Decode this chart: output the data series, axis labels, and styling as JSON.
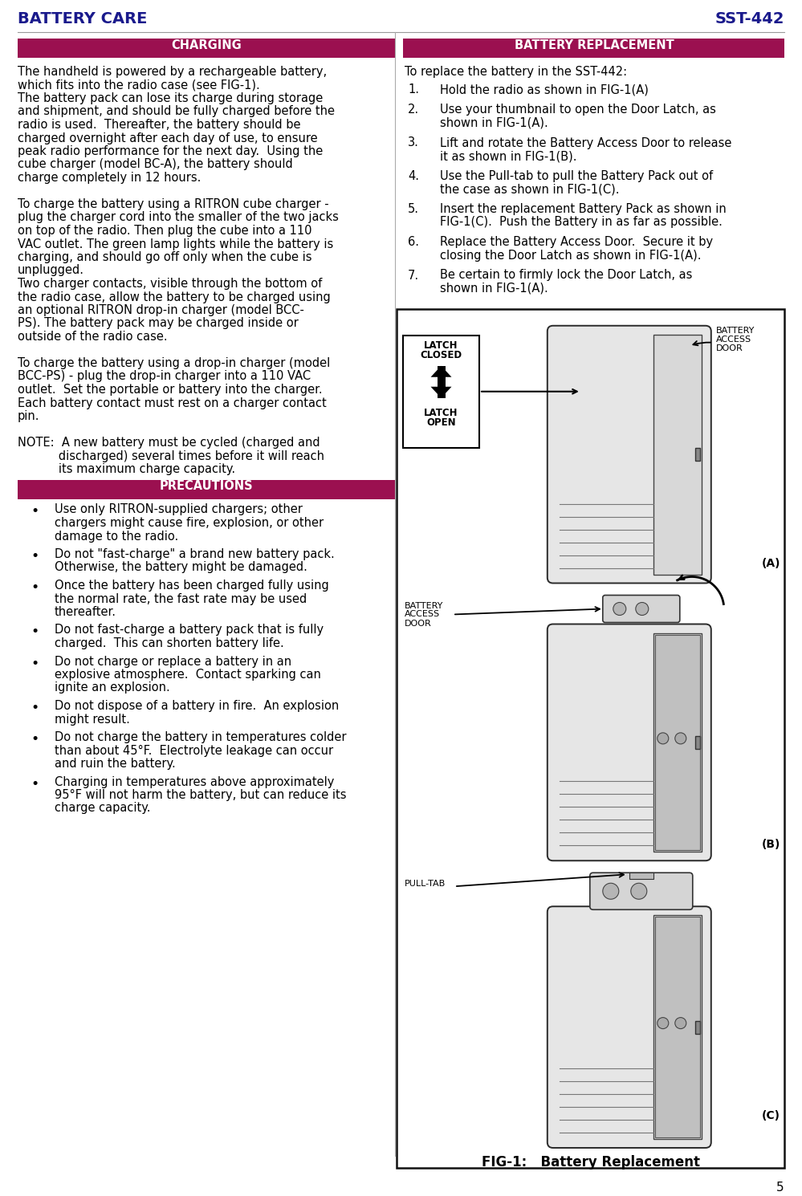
{
  "title_left": "BATTERY CARE",
  "title_right": "SST-442",
  "title_color": "#1a1a8c",
  "header_bg_color": "#9b1050",
  "header_text_color": "#ffffff",
  "charging_header": "CHARGING",
  "battery_replacement_header": "BATTERY REPLACEMENT",
  "precautions_header": "PRECAUTIONS",
  "page_number": "5",
  "bg": "#ffffff",
  "charging_lines": [
    "The handheld is powered by a rechargeable battery,",
    "which fits into the radio case (see FIG-1).",
    "The battery pack can lose its charge during storage",
    "and shipment, and should be fully charged before the",
    "radio is used.  Thereafter, the battery should be",
    "charged overnight after each day of use, to ensure",
    "peak radio performance for the next day.  Using the",
    "cube charger (model BC-A), the battery should",
    "charge completely in 12 hours.",
    "",
    "To charge the battery using a RITRON cube charger -",
    "plug the charger cord into the smaller of the two jacks",
    "on top of the radio. Then plug the cube into a 110",
    "VAC outlet. The green lamp lights while the battery is",
    "charging, and should go off only when the cube is",
    "unplugged.",
    "Two charger contacts, visible through the bottom of",
    "the radio case, allow the battery to be charged using",
    "an optional RITRON drop-in charger (model BCC-",
    "PS). The battery pack may be charged inside or",
    "outside of the radio case.",
    "",
    "To charge the battery using a drop-in charger (model",
    "BCC-PS) - plug the drop-in charger into a 110 VAC",
    "outlet.  Set the portable or battery into the charger.",
    "Each battery contact must rest on a charger contact",
    "pin.",
    "",
    "NOTE:  A new battery must be cycled (charged and",
    "           discharged) several times before it will reach",
    "           its maximum charge capacity."
  ],
  "precautions_bullets": [
    [
      "Use only RITRON-supplied chargers; other",
      "chargers might cause fire, explosion, or other",
      "damage to the radio."
    ],
    [
      "Do not \"fast-charge\" a brand new battery pack.",
      "Otherwise, the battery might be damaged."
    ],
    [
      "Once the battery has been charged fully using",
      "the normal rate, the fast rate may be used",
      "thereafter."
    ],
    [
      "Do not fast-charge a battery pack that is fully",
      "charged.  This can shorten battery life."
    ],
    [
      "Do not charge or replace a battery in an",
      "explosive atmosphere.  Contact sparking can",
      "ignite an explosion."
    ],
    [
      "Do not dispose of a battery in fire.  An explosion",
      "might result."
    ],
    [
      "Do not charge the battery in temperatures colder",
      "than about 45°F.  Electrolyte leakage can occur",
      "and ruin the battery."
    ],
    [
      "Charging in temperatures above approximately",
      "95°F will not harm the battery, but can reduce its",
      "charge capacity."
    ]
  ],
  "replacement_intro": "To replace the battery in the SST-442:",
  "replacement_steps": [
    [
      "Hold the radio as shown in FIG-1(A)"
    ],
    [
      "Use your thumbnail to open the Door Latch, as",
      "shown in FIG-1(A)."
    ],
    [
      "Lift and rotate the Battery Access Door to release",
      "it as shown in FIG-1(B)."
    ],
    [
      "Use the Pull-tab to pull the Battery Pack out of",
      "the case as shown in FIG-1(C)."
    ],
    [
      "Insert the replacement Battery Pack as shown in",
      "FIG-1(C).  Push the Battery in as far as possible."
    ],
    [
      "Replace the Battery Access Door.  Secure it by",
      "closing the Door Latch as shown in FIG-1(A)."
    ],
    [
      "Be certain to firmly lock the Door Latch, as",
      "shown in FIG-1(A)."
    ]
  ],
  "fig_caption": "FIG-1:   Battery Replacement"
}
